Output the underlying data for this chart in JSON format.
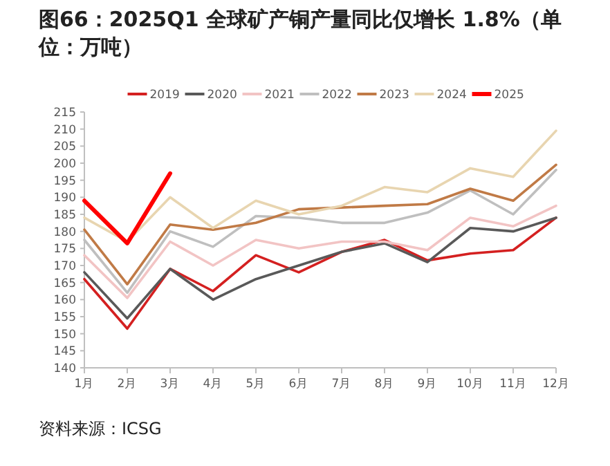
{
  "chart_data": {
    "type": "line",
    "title": "图66：2025Q1 全球矿产铜产量同比仅增长 1.8%（单位：万吨）",
    "categories": [
      "1月",
      "2月",
      "3月",
      "4月",
      "5月",
      "6月",
      "7月",
      "8月",
      "9月",
      "10月",
      "11月",
      "12月"
    ],
    "series": [
      {
        "name": "2019",
        "color": "#d42020",
        "values": [
          166,
          151.5,
          169,
          162.5,
          173,
          168,
          174,
          177.5,
          171.5,
          173.5,
          174.5,
          184
        ]
      },
      {
        "name": "2020",
        "color": "#595959",
        "values": [
          168,
          154.5,
          169,
          160,
          166,
          170,
          174,
          176.5,
          171,
          181,
          180,
          184
        ]
      },
      {
        "name": "2021",
        "color": "#f2c4c4",
        "values": [
          173,
          160.5,
          177,
          170,
          177.5,
          175,
          177,
          177,
          174.5,
          184,
          181.5,
          187.5
        ]
      },
      {
        "name": "2022",
        "color": "#bfbfbf",
        "values": [
          177.5,
          162,
          180,
          175.5,
          184.5,
          184,
          182.5,
          182.5,
          185.5,
          192,
          185,
          198
        ]
      },
      {
        "name": "2023",
        "color": "#c07a46",
        "values": [
          180.5,
          164.5,
          182,
          180.5,
          182.5,
          186.5,
          187,
          187.5,
          188,
          192.5,
          189,
          199.5
        ]
      },
      {
        "name": "2024",
        "color": "#e8d5b0",
        "values": [
          184,
          177,
          190,
          181,
          189,
          185,
          187.5,
          193,
          191.5,
          198.5,
          196,
          209.5
        ]
      },
      {
        "name": "2025",
        "color": "#ff0000",
        "values": [
          189,
          176.5,
          197,
          null,
          null,
          null,
          null,
          null,
          null,
          null,
          null,
          null
        ]
      }
    ],
    "ylim": [
      140,
      215
    ],
    "yticks": [
      140,
      145,
      150,
      155,
      160,
      165,
      170,
      175,
      180,
      185,
      190,
      195,
      200,
      205,
      210,
      215
    ],
    "grid": false,
    "legend": "top",
    "marker": "none",
    "annotations": [
      "资料来源：ICSG"
    ]
  }
}
